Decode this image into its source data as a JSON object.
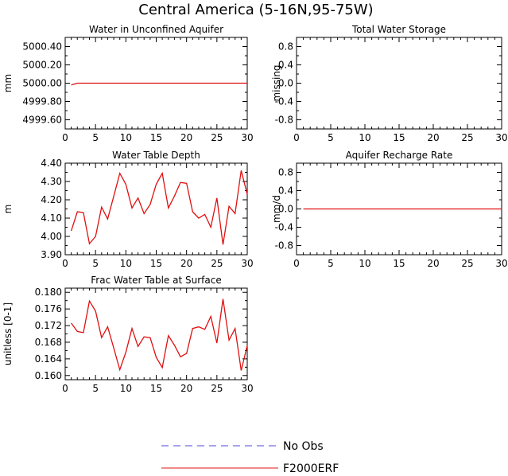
{
  "title": "Central America (5-16N,95-75W)",
  "legend": [
    {
      "label": "No Obs",
      "color": "#4a4adb",
      "style": "dashed"
    },
    {
      "label": "F2000ERF",
      "color": "#e01010",
      "style": "solid"
    }
  ],
  "chart_data": [
    {
      "type": "line",
      "title": "Water in Unconfined Aquifer",
      "ylabel": "mm",
      "xlim": [
        0,
        30
      ],
      "ylim": [
        4999.5,
        5000.5
      ],
      "xticks": [
        0,
        5,
        10,
        15,
        20,
        25,
        30
      ],
      "yticks": [
        4999.6,
        4999.8,
        5000.0,
        5000.2,
        5000.4
      ],
      "ytick_labels": [
        "4999.60",
        "4999.80",
        "5000.00",
        "5000.20",
        "5000.40"
      ],
      "series": [
        {
          "name": "F2000ERF",
          "color": "#e01010",
          "x": [
            1,
            2,
            3,
            4,
            5,
            6,
            7,
            8,
            9,
            10,
            11,
            12,
            13,
            14,
            15,
            16,
            17,
            18,
            19,
            20,
            21,
            22,
            23,
            24,
            25,
            26,
            27,
            28,
            29,
            30
          ],
          "values": [
            4999.98,
            5000.0,
            5000.0,
            5000.0,
            5000.0,
            5000.0,
            5000.0,
            5000.0,
            5000.0,
            5000.0,
            5000.0,
            5000.0,
            5000.0,
            5000.0,
            5000.0,
            5000.0,
            5000.0,
            5000.0,
            5000.0,
            5000.0,
            5000.0,
            5000.0,
            5000.0,
            5000.0,
            5000.0,
            5000.0,
            5000.0,
            5000.0,
            5000.0,
            5000.0
          ]
        }
      ]
    },
    {
      "type": "line",
      "title": "Total Water Storage",
      "ylabel": "missing",
      "xlim": [
        0,
        30
      ],
      "ylim": [
        -1,
        1
      ],
      "xticks": [
        0,
        5,
        10,
        15,
        20,
        25,
        30
      ],
      "yticks": [
        -0.8,
        -0.4,
        0.0,
        0.4,
        0.8
      ],
      "ytick_labels": [
        "-0.8",
        "-0.4",
        "0.0",
        "0.4",
        "0.8"
      ],
      "series": []
    },
    {
      "type": "line",
      "title": "Water Table Depth",
      "ylabel": "m",
      "xlim": [
        0,
        30
      ],
      "ylim": [
        3.9,
        4.4
      ],
      "xticks": [
        0,
        5,
        10,
        15,
        20,
        25,
        30
      ],
      "yticks": [
        3.9,
        4.0,
        4.1,
        4.2,
        4.3,
        4.4
      ],
      "ytick_labels": [
        "3.90",
        "4.00",
        "4.10",
        "4.20",
        "4.30",
        "4.40"
      ],
      "series": [
        {
          "name": "F2000ERF",
          "color": "#e01010",
          "x": [
            1,
            2,
            3,
            4,
            5,
            6,
            7,
            8,
            9,
            10,
            11,
            12,
            13,
            14,
            15,
            16,
            17,
            18,
            19,
            20,
            21,
            22,
            23,
            24,
            25,
            26,
            27,
            28,
            29,
            30
          ],
          "values": [
            4.03,
            4.135,
            4.13,
            3.96,
            4.0,
            4.16,
            4.095,
            4.22,
            4.345,
            4.285,
            4.155,
            4.21,
            4.125,
            4.175,
            4.285,
            4.345,
            4.155,
            4.22,
            4.295,
            4.29,
            4.135,
            4.1,
            4.12,
            4.05,
            4.21,
            3.955,
            4.165,
            4.125,
            4.36,
            4.23
          ]
        }
      ]
    },
    {
      "type": "line",
      "title": "Aquifer Recharge Rate",
      "ylabel": "mm/d",
      "xlim": [
        0,
        30
      ],
      "ylim": [
        -1,
        1
      ],
      "xticks": [
        0,
        5,
        10,
        15,
        20,
        25,
        30
      ],
      "yticks": [
        -0.8,
        -0.4,
        0.0,
        0.4,
        0.8
      ],
      "ytick_labels": [
        "-0.8",
        "-0.4",
        "0.0",
        "0.4",
        "0.8"
      ],
      "series": [
        {
          "name": "F2000ERF",
          "color": "#e01010",
          "x": [
            1,
            2,
            3,
            4,
            5,
            6,
            7,
            8,
            9,
            10,
            11,
            12,
            13,
            14,
            15,
            16,
            17,
            18,
            19,
            20,
            21,
            22,
            23,
            24,
            25,
            26,
            27,
            28,
            29,
            30
          ],
          "values": [
            0,
            0,
            0,
            0,
            0,
            0,
            0,
            0,
            0,
            0,
            0,
            0,
            0,
            0,
            0,
            0,
            0,
            0,
            0,
            0,
            0,
            0,
            0,
            0,
            0,
            0,
            0,
            0,
            0,
            0
          ]
        }
      ]
    },
    {
      "type": "line",
      "title": "Frac Water Table at Surface",
      "ylabel": "unitless [0-1]",
      "xlim": [
        0,
        30
      ],
      "ylim": [
        0.159,
        0.181
      ],
      "xticks": [
        0,
        5,
        10,
        15,
        20,
        25,
        30
      ],
      "yticks": [
        0.16,
        0.164,
        0.168,
        0.172,
        0.176,
        0.18
      ],
      "ytick_labels": [
        "0.160",
        "0.164",
        "0.168",
        "0.172",
        "0.176",
        "0.180"
      ],
      "series": [
        {
          "name": "F2000ERF",
          "color": "#e01010",
          "x": [
            1,
            2,
            3,
            4,
            5,
            6,
            7,
            8,
            9,
            10,
            11,
            12,
            13,
            14,
            15,
            16,
            17,
            18,
            19,
            20,
            21,
            22,
            23,
            24,
            25,
            26,
            27,
            28,
            29,
            30
          ],
          "values": [
            0.1726,
            0.1706,
            0.1703,
            0.1779,
            0.1755,
            0.1691,
            0.1717,
            0.1666,
            0.1614,
            0.1656,
            0.1713,
            0.167,
            0.1693,
            0.1691,
            0.1644,
            0.1619,
            0.1696,
            0.1673,
            0.1645,
            0.1653,
            0.1713,
            0.1717,
            0.1711,
            0.1742,
            0.1678,
            0.1784,
            0.1685,
            0.1713,
            0.1612,
            0.1672
          ]
        }
      ]
    }
  ]
}
